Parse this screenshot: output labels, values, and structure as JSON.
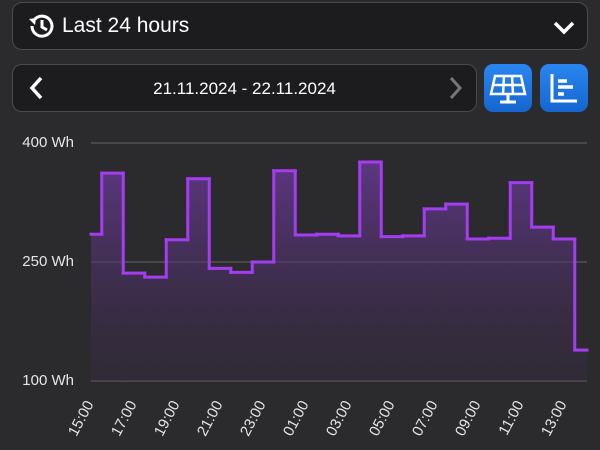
{
  "header": {
    "range_select": "Last 24 hours",
    "date_range": "21.11.2024 - 22.11.2024"
  },
  "chart_data": {
    "type": "line",
    "step": "mid",
    "fill": true,
    "color": "#a43cf0",
    "grid": true,
    "categories": [
      "15:00",
      null,
      "17:00",
      null,
      "19:00",
      null,
      "21:00",
      null,
      "23:00",
      null,
      "01:00",
      null,
      "03:00",
      null,
      "05:00",
      null,
      "07:00",
      null,
      "09:00",
      null,
      "11:00",
      null,
      "13:00",
      null
    ],
    "values": [
      285,
      362,
      236,
      231,
      278,
      355,
      242,
      237,
      250,
      365,
      284,
      285,
      283,
      376,
      282,
      283,
      317,
      323,
      279,
      280,
      350,
      294,
      279,
      139
    ],
    "ylim": [
      100,
      400
    ],
    "yticks": [
      {
        "value": 100,
        "label": "100 Wh"
      },
      {
        "value": 250,
        "label": "250 Wh"
      },
      {
        "value": 400,
        "label": "400 Wh"
      }
    ]
  }
}
